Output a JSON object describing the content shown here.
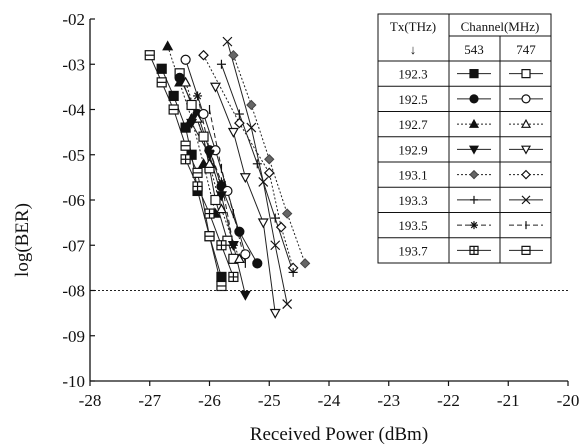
{
  "chart_data": {
    "type": "line",
    "xlabel": "Received Power (dBm)",
    "ylabel": "log(BER)",
    "xlim": [
      -28,
      -20
    ],
    "ylim": [
      -10,
      -2
    ],
    "x_ticks": [
      -28,
      -27,
      -26,
      -25,
      -24,
      -23,
      -22,
      -21,
      -20
    ],
    "x_tick_labels": [
      "-28",
      "-27",
      "-26",
      "-25",
      "-24",
      "-23",
      "-22",
      "-21",
      "-20"
    ],
    "y_ticks": [
      -2,
      -3,
      -4,
      -5,
      -6,
      -7,
      -8,
      -9,
      -10
    ],
    "y_tick_labels": [
      "-02",
      "-03",
      "-04",
      "-05",
      "-06",
      "-07",
      "-08",
      "-09",
      "-10"
    ],
    "reference_line": {
      "y": -8,
      "style": "dotted"
    },
    "legend": {
      "placement": "top-right",
      "header_tx": "Tx(THz)",
      "header_channel": "Channel(MHz)",
      "arrow": "↓",
      "col_a": "543",
      "col_b": "747"
    },
    "series": [
      {
        "tx": "192.3",
        "channel": "543",
        "marker": "square-filled",
        "dash": "solid",
        "x": [
          -26.8,
          -26.6,
          -26.4,
          -26.3,
          -26.2,
          -26.0,
          -25.8
        ],
        "y": [
          -3.1,
          -3.7,
          -4.4,
          -5.0,
          -5.8,
          -6.8,
          -7.7
        ]
      },
      {
        "tx": "192.3",
        "channel": "747",
        "marker": "square-open",
        "dash": "solid",
        "x": [
          -26.5,
          -26.3,
          -26.1,
          -26.0,
          -25.9,
          -25.7,
          -25.6
        ],
        "y": [
          -3.2,
          -3.9,
          -4.6,
          -5.3,
          -6.0,
          -6.9,
          -7.3
        ]
      },
      {
        "tx": "192.5",
        "channel": "543",
        "marker": "circle-filled",
        "dash": "solid",
        "x": [
          -26.5,
          -26.2,
          -26.0,
          -25.8,
          -25.5,
          -25.2
        ],
        "y": [
          -3.3,
          -4.1,
          -4.9,
          -5.7,
          -6.7,
          -7.4
        ]
      },
      {
        "tx": "192.5",
        "channel": "747",
        "marker": "circle-open",
        "dash": "solid",
        "x": [
          -26.4,
          -26.1,
          -25.9,
          -25.7,
          -25.4
        ],
        "y": [
          -2.9,
          -4.1,
          -4.9,
          -5.8,
          -7.2
        ]
      },
      {
        "tx": "192.7",
        "channel": "543",
        "marker": "triangle-filled",
        "dash": "dotted",
        "x": [
          -26.7,
          -26.5,
          -26.3,
          -26.1,
          -25.9
        ],
        "y": [
          -2.6,
          -3.4,
          -4.2,
          -5.2,
          -6.3
        ]
      },
      {
        "tx": "192.7",
        "channel": "747",
        "marker": "triangle-open",
        "dash": "dotted",
        "x": [
          -26.4,
          -26.2,
          -26.0,
          -25.8,
          -25.5
        ],
        "y": [
          -3.4,
          -4.2,
          -5.2,
          -6.2,
          -7.3
        ]
      },
      {
        "tx": "192.9",
        "channel": "543",
        "marker": "tri-down-filled",
        "dash": "solid",
        "x": [
          -26.3,
          -26.0,
          -25.8,
          -25.6,
          -25.4
        ],
        "y": [
          -4.3,
          -5.0,
          -5.9,
          -7.0,
          -8.1
        ]
      },
      {
        "tx": "192.9",
        "channel": "747",
        "marker": "tri-down-open",
        "dash": "solid",
        "x": [
          -25.9,
          -25.6,
          -25.4,
          -25.1,
          -24.9
        ],
        "y": [
          -3.5,
          -4.5,
          -5.5,
          -6.5,
          -8.5
        ]
      },
      {
        "tx": "193.1",
        "channel": "543",
        "marker": "diamond-filled",
        "dash": "dotted",
        "x": [
          -25.6,
          -25.3,
          -25.0,
          -24.7,
          -24.4
        ],
        "y": [
          -2.8,
          -3.9,
          -5.1,
          -6.3,
          -7.4
        ]
      },
      {
        "tx": "193.1",
        "channel": "747",
        "marker": "diamond-open",
        "dash": "dotted",
        "x": [
          -26.1,
          -25.5,
          -25.0,
          -24.8,
          -24.6
        ],
        "y": [
          -2.8,
          -4.3,
          -5.4,
          -6.6,
          -7.5
        ]
      },
      {
        "tx": "193.3",
        "channel": "543",
        "marker": "plus",
        "dash": "solid",
        "x": [
          -25.8,
          -25.5,
          -25.2,
          -24.9,
          -24.6
        ],
        "y": [
          -3.0,
          -4.1,
          -5.2,
          -6.4,
          -7.6
        ]
      },
      {
        "tx": "193.3",
        "channel": "747",
        "marker": "cross",
        "dash": "solid",
        "x": [
          -25.7,
          -25.3,
          -25.1,
          -24.9,
          -24.7
        ],
        "y": [
          -2.5,
          -4.4,
          -5.6,
          -7.0,
          -8.3
        ]
      },
      {
        "tx": "193.5",
        "channel": "543",
        "marker": "asterisk",
        "dash": "dashed",
        "x": [
          -26.2,
          -26.0,
          -25.8,
          -25.6
        ],
        "y": [
          -3.7,
          -4.9,
          -5.6,
          -7.0
        ]
      },
      {
        "tx": "193.5",
        "channel": "747",
        "marker": "vbar",
        "dash": "dashed",
        "x": [
          -26.0,
          -25.8,
          -25.6,
          -25.4
        ],
        "y": [
          -4.0,
          -5.3,
          -6.3,
          -7.4
        ]
      },
      {
        "tx": "193.7",
        "channel": "543",
        "marker": "square-plus",
        "dash": "solid",
        "x": [
          -26.4,
          -26.2,
          -26.0,
          -25.8,
          -25.6
        ],
        "y": [
          -5.1,
          -5.7,
          -6.3,
          -7.0,
          -7.7
        ]
      },
      {
        "tx": "193.7",
        "channel": "747",
        "marker": "square-minus",
        "dash": "solid",
        "x": [
          -27.0,
          -26.8,
          -26.6,
          -26.4,
          -26.2,
          -26.0,
          -25.8
        ],
        "y": [
          -2.8,
          -3.4,
          -4.0,
          -4.8,
          -5.4,
          -6.8,
          -7.9
        ]
      }
    ]
  }
}
